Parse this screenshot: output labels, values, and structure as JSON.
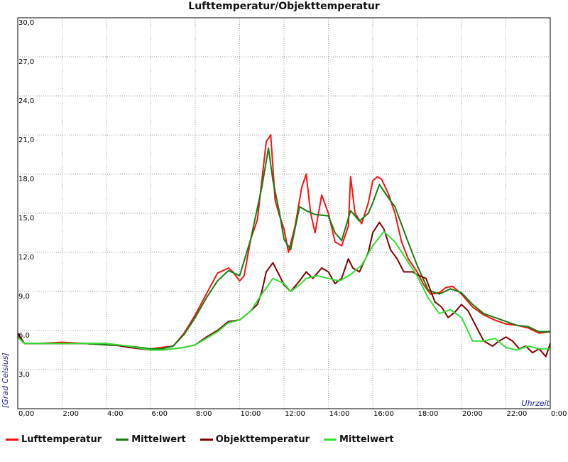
{
  "chart_data": {
    "type": "line",
    "title": "Lufttemperatur/Objekttemperatur",
    "xlabel": "Uhrzeit",
    "ylabel": "[Grad Celsius]",
    "xlim": [
      0,
      24
    ],
    "ylim": [
      0,
      30
    ],
    "grid": true,
    "legend_position": "bottom",
    "x_ticks": [
      {
        "value": 0,
        "label": "0,00"
      },
      {
        "value": 2,
        "label": "2:00"
      },
      {
        "value": 4,
        "label": "4:00"
      },
      {
        "value": 6,
        "label": "6:00"
      },
      {
        "value": 8,
        "label": "8:00"
      },
      {
        "value": 10,
        "label": "10:00"
      },
      {
        "value": 12,
        "label": "12:00"
      },
      {
        "value": 14,
        "label": "14:00"
      },
      {
        "value": 16,
        "label": "16:00"
      },
      {
        "value": 18,
        "label": "18:00"
      },
      {
        "value": 20,
        "label": "20:00"
      },
      {
        "value": 22,
        "label": "22:00"
      },
      {
        "value": 24,
        "label": "0:00"
      }
    ],
    "y_ticks": [
      {
        "value": 3,
        "label": "3,0"
      },
      {
        "value": 6,
        "label": "6,0"
      },
      {
        "value": 9,
        "label": "9,0"
      },
      {
        "value": 12,
        "label": "12,0"
      },
      {
        "value": 15,
        "label": "15,0"
      },
      {
        "value": 18,
        "label": "18,0"
      },
      {
        "value": 21,
        "label": "21,0"
      },
      {
        "value": 24,
        "label": "24,0"
      },
      {
        "value": 27,
        "label": "27,0"
      },
      {
        "value": 30,
        "label": "30,0"
      }
    ],
    "series": [
      {
        "name": "Lufttemperatur",
        "color": "#ff1010",
        "x": [
          0,
          0.3,
          1,
          2,
          3,
          4,
          5,
          6,
          6.5,
          7,
          7.5,
          8,
          8.5,
          9,
          9.5,
          9.7,
          10,
          10.2,
          10.5,
          10.8,
          11,
          11.2,
          11.4,
          11.6,
          11.8,
          12,
          12.2,
          12.5,
          12.8,
          13,
          13.2,
          13.4,
          13.7,
          14,
          14.3,
          14.6,
          14.9,
          15,
          15.2,
          15.5,
          15.8,
          16,
          16.2,
          16.4,
          16.7,
          17,
          17.3,
          17.6,
          18,
          18.3,
          18.6,
          19,
          19.3,
          19.6,
          20,
          20.5,
          21,
          21.5,
          22,
          22.5,
          23,
          23.5,
          24
        ],
        "y": [
          5.6,
          5.0,
          5.0,
          5.1,
          5.0,
          4.9,
          4.8,
          4.6,
          4.7,
          4.8,
          5.8,
          7.2,
          8.8,
          10.4,
          10.8,
          10.5,
          9.8,
          10.2,
          13.0,
          14.5,
          17.5,
          20.5,
          21.0,
          16.0,
          14.8,
          13.8,
          12.0,
          14.0,
          17.0,
          18.0,
          15.0,
          13.5,
          16.4,
          15.0,
          12.8,
          12.5,
          14.0,
          17.8,
          15.0,
          14.2,
          15.8,
          17.5,
          17.8,
          17.6,
          16.5,
          15.0,
          12.8,
          11.5,
          10.5,
          9.5,
          8.8,
          8.9,
          9.3,
          9.4,
          8.8,
          7.8,
          7.2,
          6.8,
          6.5,
          6.4,
          6.2,
          5.8,
          5.9
        ]
      },
      {
        "name": "Mittelwert",
        "color": "#108010",
        "x": [
          0,
          0.3,
          1,
          2,
          3,
          4,
          5,
          6,
          6.5,
          7,
          7.5,
          8,
          8.5,
          9,
          9.5,
          10,
          10.5,
          11,
          11.3,
          11.5,
          11.8,
          12,
          12.3,
          12.7,
          13,
          13.4,
          14,
          14.3,
          14.6,
          15,
          15.4,
          15.8,
          16,
          16.3,
          16.7,
          17,
          17.5,
          18,
          18.5,
          19,
          19.5,
          20,
          20.5,
          21,
          22,
          22.5,
          23,
          23.5,
          24
        ],
        "y": [
          5.5,
          5.0,
          5.0,
          5.0,
          5.0,
          4.9,
          4.8,
          4.6,
          4.6,
          4.8,
          5.7,
          7.0,
          8.5,
          9.8,
          10.6,
          10.2,
          13.0,
          17.0,
          20.0,
          17.5,
          15.0,
          13.0,
          12.2,
          15.5,
          15.2,
          14.9,
          14.8,
          13.5,
          12.9,
          15.2,
          14.4,
          15.0,
          15.8,
          17.2,
          16.2,
          15.5,
          13.2,
          11.0,
          9.1,
          8.8,
          9.2,
          8.9,
          8.0,
          7.3,
          6.7,
          6.4,
          6.3,
          5.9,
          5.9
        ]
      },
      {
        "name": "Objekttemperatur",
        "color": "#800000",
        "x": [
          0,
          0.3,
          1,
          2,
          3,
          4,
          5,
          6,
          6.5,
          7,
          7.5,
          8,
          8.5,
          9,
          9.5,
          10,
          10.5,
          10.8,
          11,
          11.2,
          11.5,
          11.8,
          12,
          12.3,
          12.7,
          13,
          13.3,
          13.7,
          14,
          14.3,
          14.6,
          14.9,
          15.1,
          15.4,
          15.8,
          16,
          16.3,
          16.5,
          16.8,
          17.1,
          17.4,
          17.8,
          18.1,
          18.4,
          18.8,
          19.1,
          19.4,
          19.7,
          20,
          20.3,
          20.6,
          21,
          21.4,
          21.7,
          22,
          22.3,
          22.6,
          22.9,
          23.2,
          23.5,
          23.8,
          24
        ],
        "y": [
          5.8,
          5.0,
          5.0,
          5.0,
          5.0,
          5.0,
          4.7,
          4.5,
          4.5,
          4.6,
          4.7,
          4.9,
          5.5,
          6.0,
          6.7,
          6.8,
          7.5,
          8.0,
          9.0,
          10.5,
          11.2,
          10.2,
          9.5,
          9.0,
          9.8,
          10.5,
          10.0,
          10.8,
          10.5,
          9.6,
          10.0,
          11.5,
          10.8,
          10.5,
          12.0,
          13.5,
          14.3,
          13.8,
          12.2,
          11.5,
          10.5,
          10.5,
          10.2,
          10.0,
          8.2,
          7.8,
          7.0,
          7.4,
          8.0,
          7.5,
          6.5,
          5.2,
          4.8,
          5.2,
          5.5,
          5.2,
          4.6,
          4.8,
          4.3,
          4.6,
          4.0,
          5.0
        ]
      },
      {
        "name": "Mittelwert",
        "color": "#30e030",
        "x": [
          0,
          0.3,
          1,
          2,
          3,
          4,
          5,
          6,
          6.5,
          7,
          7.5,
          8,
          8.5,
          9,
          9.5,
          10,
          10.5,
          11,
          11.5,
          12,
          12.3,
          12.7,
          13,
          13.5,
          14,
          14.5,
          15,
          15.5,
          16,
          16.5,
          17,
          17.5,
          18,
          18.5,
          19,
          19.5,
          20,
          20.5,
          21,
          21.5,
          22,
          22.5,
          23,
          23.5,
          24
        ],
        "y": [
          5.5,
          5.0,
          5.0,
          5.0,
          5.0,
          5.0,
          4.8,
          4.5,
          4.5,
          4.6,
          4.7,
          4.9,
          5.4,
          5.9,
          6.6,
          6.8,
          7.5,
          8.8,
          10.0,
          9.6,
          9.0,
          9.5,
          10.0,
          10.2,
          10.0,
          9.8,
          10.3,
          11.0,
          12.5,
          13.6,
          12.8,
          11.5,
          10.2,
          8.5,
          7.3,
          7.6,
          7.0,
          5.2,
          5.2,
          5.4,
          4.7,
          4.5,
          4.8,
          4.6,
          4.6
        ]
      }
    ]
  }
}
